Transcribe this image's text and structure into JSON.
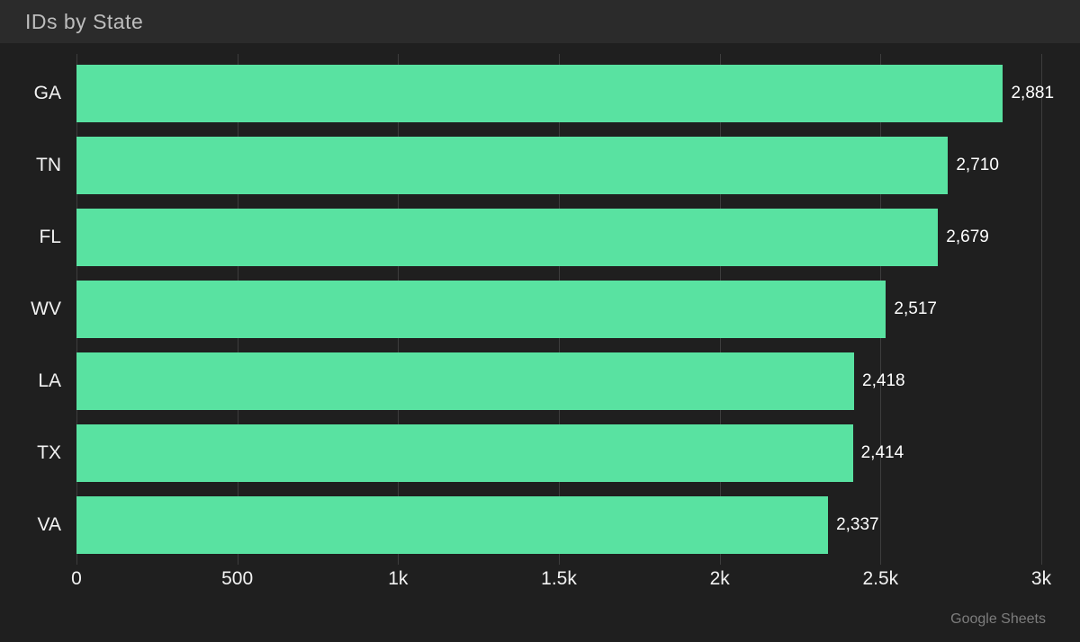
{
  "header": {
    "title": "IDs by State"
  },
  "footer": {
    "attribution": "Google Sheets"
  },
  "chart_data": {
    "type": "bar",
    "orientation": "horizontal",
    "title": "IDs by State",
    "categories": [
      "GA",
      "TN",
      "FL",
      "WV",
      "LA",
      "TX",
      "VA"
    ],
    "values": [
      2881,
      2710,
      2679,
      2517,
      2418,
      2414,
      2337
    ],
    "value_labels": [
      "2,881",
      "2,710",
      "2,679",
      "2,517",
      "2,418",
      "2,414",
      "2,337"
    ],
    "xlabel": "",
    "ylabel": "",
    "xlim": [
      0,
      3000
    ],
    "x_ticks": [
      {
        "value": 0,
        "label": "0"
      },
      {
        "value": 500,
        "label": "500"
      },
      {
        "value": 1000,
        "label": "1k"
      },
      {
        "value": 1500,
        "label": "1.5k"
      },
      {
        "value": 2000,
        "label": "2k"
      },
      {
        "value": 2500,
        "label": "2.5k"
      },
      {
        "value": 3000,
        "label": "3k"
      }
    ],
    "grid": "vertical",
    "legend": "none",
    "colors": {
      "bar": "#59e2a1",
      "background": "#1f1f1f",
      "header_background": "#2b2b2b",
      "gridline": "#3d3d3d",
      "title_text": "#bdbdbd",
      "axis_text": "#f2f2f2",
      "category_text": "#f2f2f2",
      "value_text": "#ffffff",
      "attribution_text": "#7d7d7d"
    }
  }
}
